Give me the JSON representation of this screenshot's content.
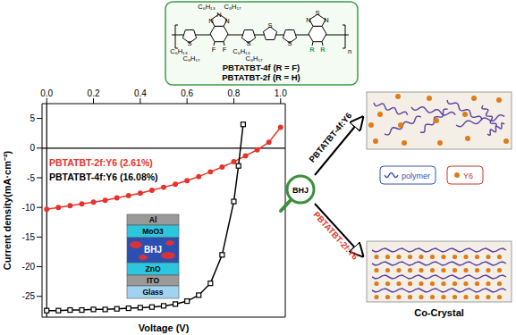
{
  "chart_data": {
    "type": "line",
    "xlabel": "Voltage (V)",
    "ylabel": "Current density(mA·cm⁻²)",
    "xlim": [
      -0.02,
      1.02
    ],
    "ylim": [
      -28.5,
      7.5
    ],
    "xticks": [
      {
        "value": 0,
        "label": "0.0"
      },
      0.2,
      0.4,
      0.6,
      0.8,
      {
        "value": 1,
        "label": "1.0"
      }
    ],
    "yticks": [
      -25,
      -20,
      -15,
      -10,
      -5,
      0,
      5
    ],
    "legend": "upper left",
    "series": [
      {
        "name": "PBTATBT-2f:Y6 (2.61%)",
        "color": "#e8322b",
        "marker": "circle",
        "line_style": "solid",
        "x": [
          0,
          0.05,
          0.1,
          0.15,
          0.2,
          0.25,
          0.3,
          0.35,
          0.4,
          0.45,
          0.5,
          0.55,
          0.6,
          0.65,
          0.7,
          0.75,
          0.8,
          0.85,
          0.9,
          0.95,
          1.0
        ],
        "values": [
          -10.3,
          -10.0,
          -9.7,
          -9.4,
          -9.1,
          -8.8,
          -8.4,
          -8.0,
          -7.6,
          -7.1,
          -6.6,
          -6.1,
          -5.5,
          -4.8,
          -4.0,
          -3.2,
          -2.3,
          -1.3,
          -0.3,
          1.0,
          3.5
        ]
      },
      {
        "name": "PBTATBT-4f:Y6 (16.08%)",
        "color": "#000000",
        "marker": "square",
        "line_style": "solid",
        "x": [
          0,
          0.05,
          0.1,
          0.15,
          0.2,
          0.25,
          0.3,
          0.35,
          0.4,
          0.45,
          0.5,
          0.55,
          0.6,
          0.65,
          0.7,
          0.75,
          0.8,
          0.82,
          0.84
        ],
        "values": [
          -27.4,
          -27.4,
          -27.3,
          -27.3,
          -27.2,
          -27.2,
          -27.1,
          -27.0,
          -26.9,
          -26.8,
          -26.6,
          -26.3,
          -25.8,
          -24.8,
          -22.8,
          -18.0,
          -9.0,
          -3.0,
          4.0
        ]
      }
    ]
  },
  "structure": {
    "labels": [
      "C₆H₁₃",
      "C₈H₁₇",
      "N",
      "N",
      "N",
      "F",
      "F",
      "S",
      "C₆H₁₃",
      "C₈H₁₇",
      "S",
      "C₆H₁₃",
      "C₈H₁₇",
      "S",
      "S",
      "N",
      "S",
      "N",
      "R",
      "R",
      "n"
    ],
    "captions": [
      "PBTATBT-4f (R = F)",
      "PBTATBT-2f (R = H)"
    ]
  },
  "device": {
    "layers": [
      "Al",
      "MoO3",
      "BHJ",
      "ZnO",
      "ITO",
      "Glass"
    ],
    "magnifier": "BHJ"
  },
  "morphology": {
    "top_label": "PBTATBT-4f:Y6",
    "bottom_label": "PBTATBT-2f:Y6",
    "bottom_caption": "Co-Crystal",
    "key": [
      "polymer",
      "Y6"
    ]
  }
}
